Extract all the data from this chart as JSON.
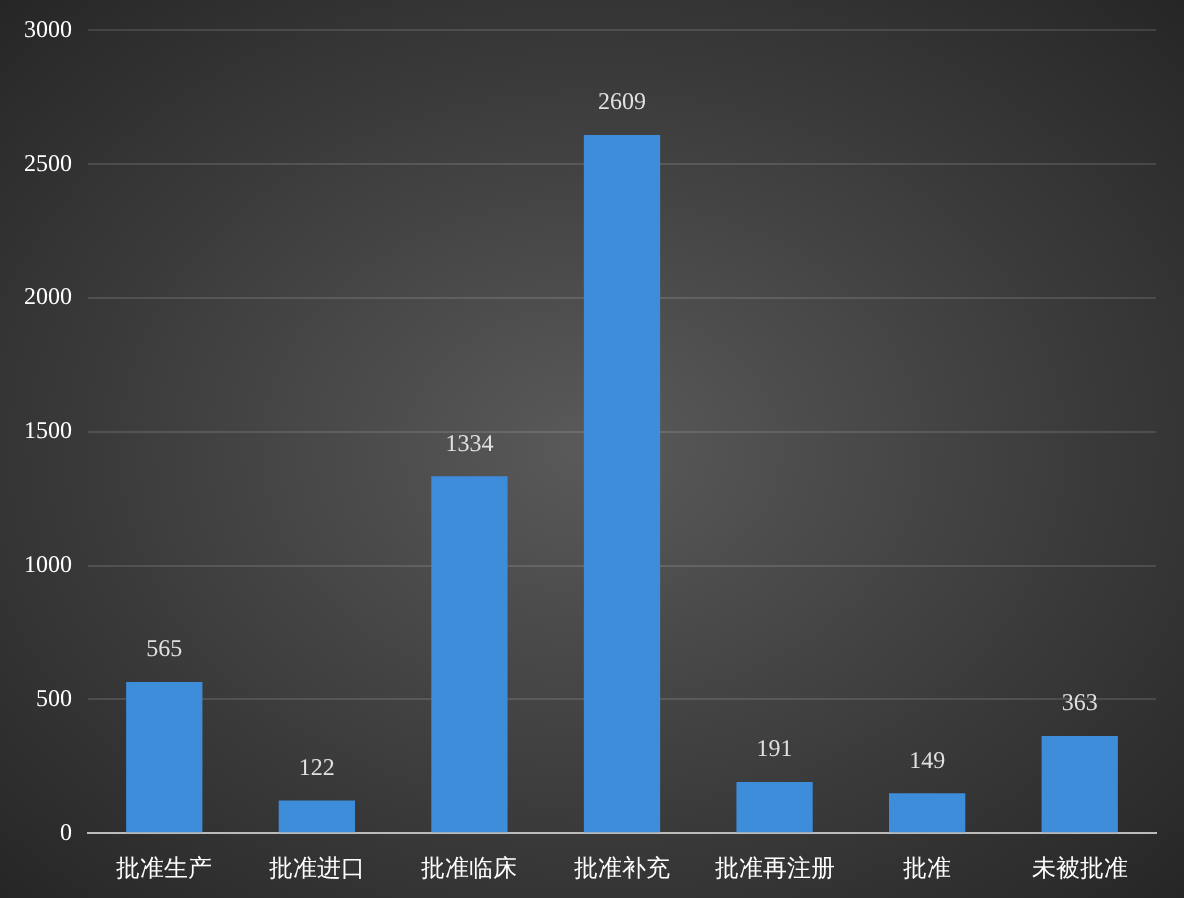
{
  "chart_data": {
    "type": "bar",
    "categories": [
      "批准生产",
      "批准进口",
      "批准临床",
      "批准补充",
      "批准再注册",
      "批准",
      "未被批准"
    ],
    "values": [
      565,
      122,
      1334,
      2609,
      191,
      149,
      363
    ],
    "color": "#3d8ddb",
    "ylim": [
      0,
      3000
    ],
    "yticks": [
      0,
      500,
      1000,
      1500,
      2000,
      2500,
      3000
    ],
    "grid": "y",
    "data_labels": true
  }
}
